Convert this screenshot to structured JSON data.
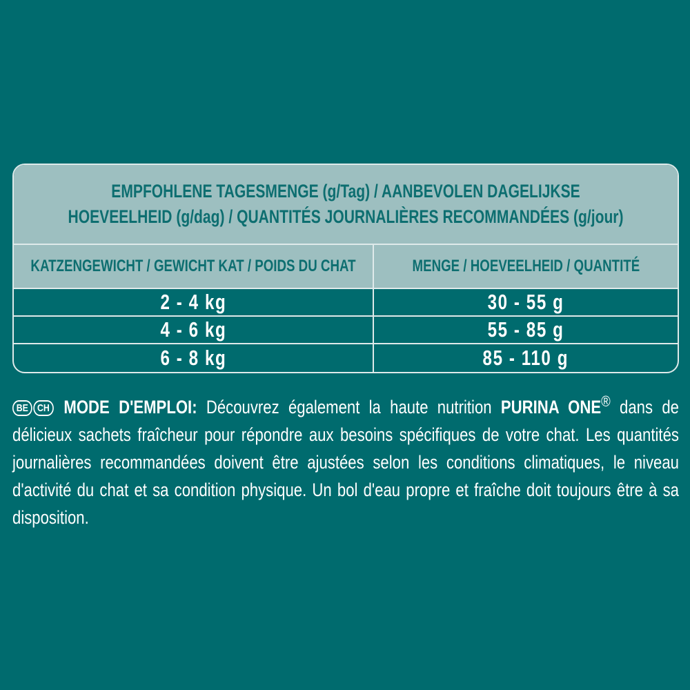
{
  "colors": {
    "background": "#006b6e",
    "header_fill": "#9dbfc0",
    "header_text": "#0d6e70",
    "border": "#dfeaea"
  },
  "table": {
    "title_line1": "EMPFOHLENE TAGESMENGE (g/Tag) / AANBEVOLEN DAGELIJKSE",
    "title_line2": "HOEVEELHEID (g/dag) / QUANTITÉS JOURNALIÈRES RECOMMANDÉES (g/jour)",
    "headers": [
      "KATZENGEWICHT / GEWICHT KAT / POIDS DU CHAT",
      "MENGE / HOEVEELHEID / QUANTITÉ"
    ],
    "rows": [
      [
        "2 - 4 kg",
        "30 - 55 g"
      ],
      [
        "4 - 6 kg",
        "55 - 85 g"
      ],
      [
        "6 - 8 kg",
        "85 - 110 g"
      ]
    ]
  },
  "instructions": {
    "country_badges": [
      "BE",
      "CH"
    ],
    "label": "MODE D'EMPLOI:",
    "text_before_brand": " Découvrez également la haute nutrition ",
    "brand": "PURINA ONE",
    "registered": "®",
    "text_after_brand": " dans de délicieux sachets fraîcheur pour répondre aux besoins spécifiques de votre chat. Les quantités journalières recommandées doivent être ajustées selon les conditions climatiques, le niveau d'activité du chat et sa condition physique. Un bol d'eau propre et fraîche doit toujours être à sa disposition."
  }
}
